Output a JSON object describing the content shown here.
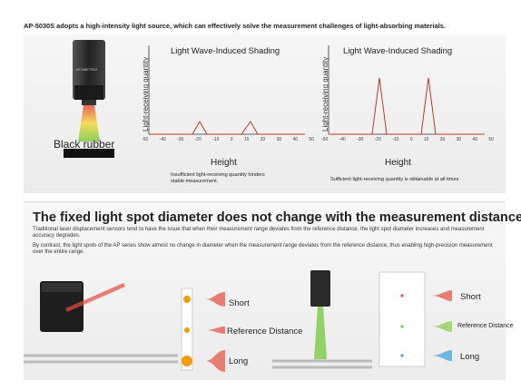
{
  "headline": "AP-5030S adopts a high-intensity light source, which can effectively solve the measurement challenges of light-absorbing materials.",
  "top_panel": {
    "sensor_brand": "ATOMETRIO",
    "material_label": "Black rubber",
    "charts": [
      {
        "title": "Light Wave-Induced Shading",
        "ylabel": "Light-receiving quantity",
        "xlabel": "Height",
        "note": "Insufficient light-receiving quantity hinders stable measurement.",
        "ticks": [
          "-50",
          "-40",
          "-30",
          "-20",
          "-10",
          "0",
          "10",
          "20",
          "30",
          "40",
          "50"
        ]
      },
      {
        "title": "Light Wave-Induced Shading",
        "ylabel": "Light-receiving quantity",
        "xlabel": "Height",
        "note": "Sufficient light-receiving quantity is obtainable at all times",
        "ticks": [
          "-50",
          "-40",
          "-30",
          "-20",
          "-10",
          "0",
          "10",
          "20",
          "30",
          "40",
          "50"
        ]
      }
    ]
  },
  "bottom_panel": {
    "title": "The fixed light spot diameter does not change with the measurement distance.",
    "para1": "Traditional laser displacement sensors tend to have the issue that when their measurement range deviates from the reference distance, the light spot diameter increases and measurement accuracy degrades.",
    "para2": "By contrast, the light spots of the AP series show almost no change in diameter when the measurement range deviates from the reference distance, thus enabling high-precision measurement over the entire range.",
    "left_diagram": {
      "short": "Short",
      "reference": "Reference Distance",
      "long": "Long"
    },
    "right_diagram": {
      "short": "Short",
      "reference": "Reference Distance",
      "long": "Long"
    }
  },
  "colors": {
    "peak_line": "#c0392b",
    "laser_red": "#e74c3c",
    "laser_green": "#7ac943",
    "laser_blue": "#3aa0d8",
    "laser_orange": "#f39c12"
  }
}
